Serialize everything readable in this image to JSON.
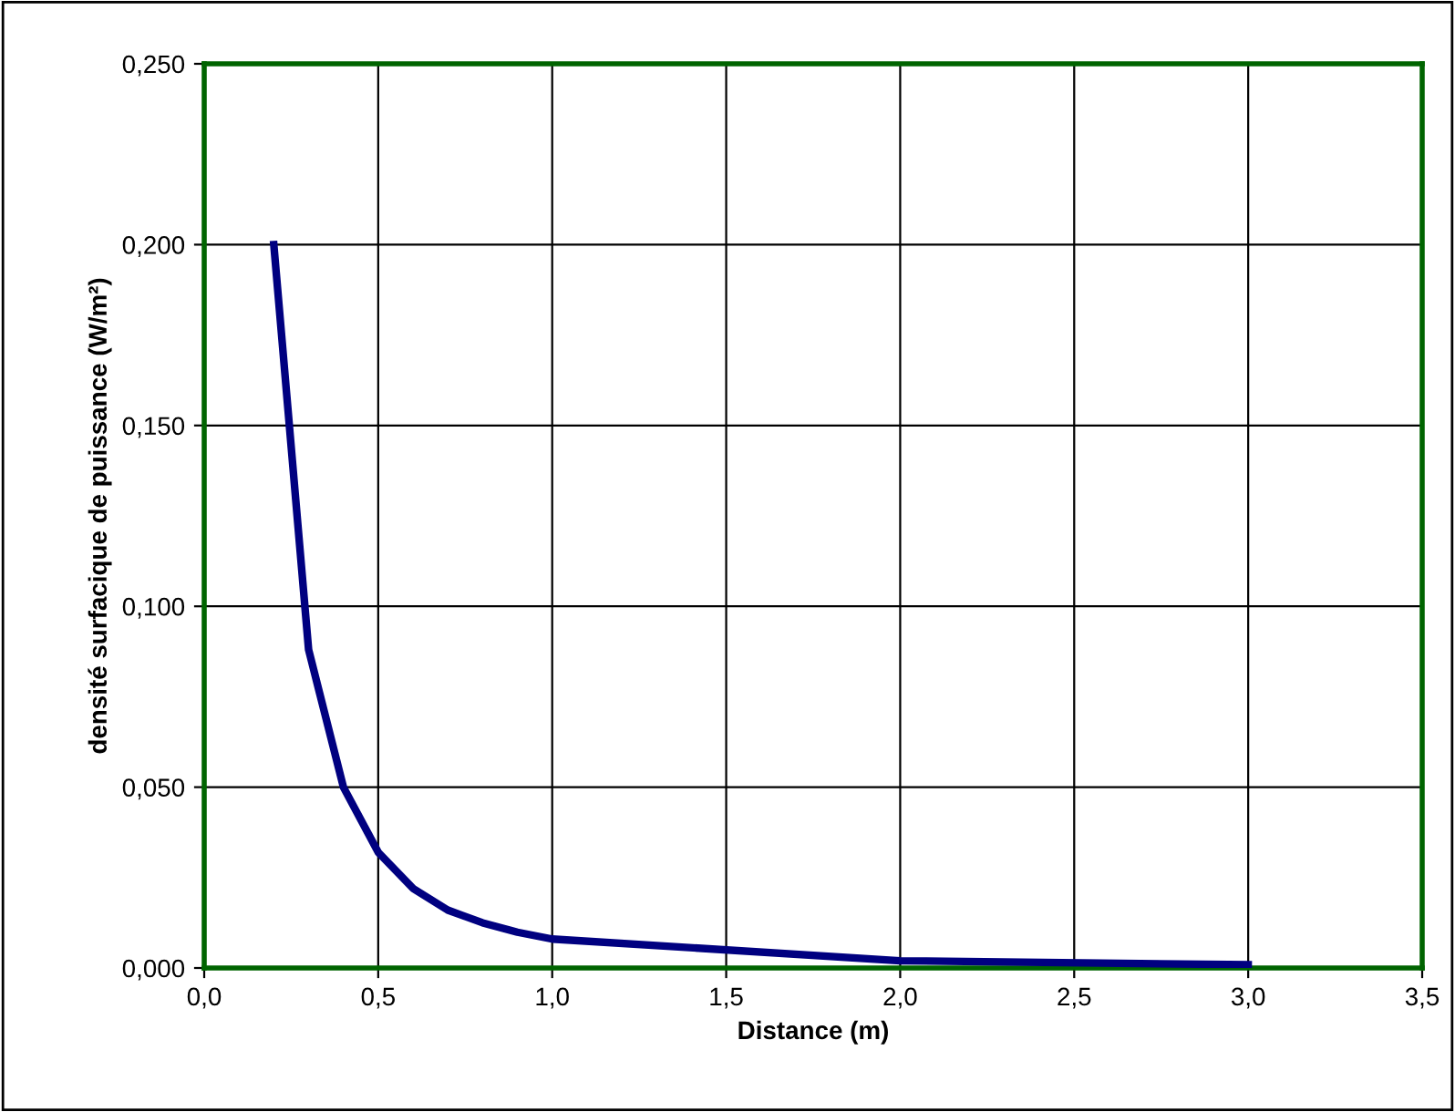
{
  "chart_data": {
    "type": "line",
    "xlabel": "Distance (m)",
    "ylabel": "densité surfacique de puissance (W/m²)",
    "x": [
      0.2,
      0.3,
      0.4,
      0.5,
      0.6,
      0.7,
      0.8,
      0.9,
      1.0,
      2.0,
      3.0
    ],
    "series": [
      {
        "color": "#000080",
        "values": [
          0.2,
          0.088,
          0.05,
          0.032,
          0.022,
          0.016,
          0.0125,
          0.0099,
          0.008,
          0.002,
          0.0009
        ]
      }
    ],
    "xlim": [
      0,
      3.5
    ],
    "ylim": [
      0,
      0.25
    ],
    "xticks": [
      {
        "value": 0,
        "label": "0,0"
      },
      {
        "value": 0.5,
        "label": "0,5"
      },
      {
        "value": 1.0,
        "label": "1,0"
      },
      {
        "value": 1.5,
        "label": "1,5"
      },
      {
        "value": 2.0,
        "label": "2,0"
      },
      {
        "value": 2.5,
        "label": "2,5"
      },
      {
        "value": 3.0,
        "label": "3,0"
      },
      {
        "value": 3.5,
        "label": "3,5"
      }
    ],
    "yticks": [
      {
        "value": 0,
        "label": "0,000"
      },
      {
        "value": 0.05,
        "label": "0,050"
      },
      {
        "value": 0.1,
        "label": "0,100"
      },
      {
        "value": 0.15,
        "label": "0,150"
      },
      {
        "value": 0.2,
        "label": "0,200"
      },
      {
        "value": 0.25,
        "label": "0,250"
      }
    ],
    "grid": true,
    "marker": "none",
    "line_style": "solid",
    "legend": false
  }
}
